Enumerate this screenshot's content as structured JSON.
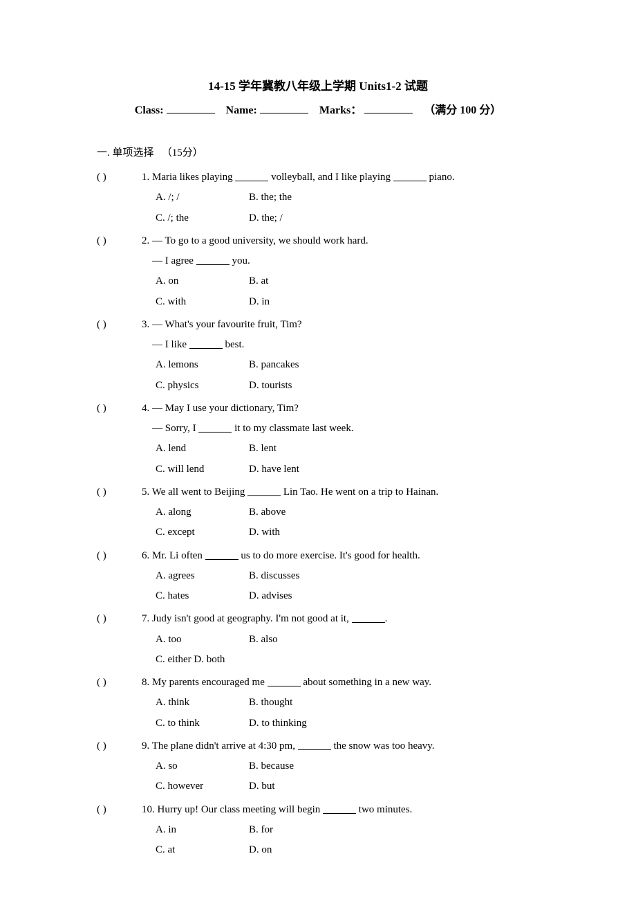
{
  "title": "14-15 学年冀教八年级上学期 Units1-2 试题",
  "header": {
    "class_label": "Class:",
    "name_label": "Name:",
    "marks_label": "Marks：",
    "full_marks": "（满分 100 分）"
  },
  "section": {
    "number": "一.",
    "title": "单项选择",
    "points": "（15分）"
  },
  "questions": [
    {
      "paren": "(       )",
      "num": "1.",
      "text_parts": [
        "Maria likes playing ",
        " volleyball, and I like playing ",
        " piano."
      ],
      "opts": [
        {
          "a": "A. /; /",
          "b": "B. the; the"
        },
        {
          "a": "C. /; the",
          "b": "D. the; /"
        }
      ]
    },
    {
      "paren": "(       )",
      "num": "2.",
      "text_parts": [
        "— To go to a good university, we should work hard."
      ],
      "sub": [
        "— I agree ",
        " you."
      ],
      "opts": [
        {
          "a": "A. on",
          "b": "B. at"
        },
        {
          "a": "C. with",
          "b": "D. in"
        }
      ]
    },
    {
      "paren": "(       )",
      "num": "3.",
      "text_parts": [
        "— What's your favourite fruit, Tim?"
      ],
      "sub": [
        "— I like ",
        " best."
      ],
      "opts": [
        {
          "a": "A. lemons",
          "b": "B. pancakes"
        },
        {
          "a": "C. physics",
          "b": "D. tourists"
        }
      ]
    },
    {
      "paren": "(       )",
      "num": "4.",
      "text_parts": [
        "— May I use your dictionary, Tim?"
      ],
      "sub": [
        "— Sorry, I ",
        " it to my classmate last week."
      ],
      "opts": [
        {
          "a": "A. lend",
          "b": "B. lent"
        },
        {
          "a": "C. will lend",
          "b": "D. have lent"
        }
      ]
    },
    {
      "paren": "(       )",
      "num": "5.",
      "text_parts": [
        "We all went to Beijing ",
        " Lin Tao. He went on a trip to Hainan."
      ],
      "opts": [
        {
          "a": "A. along",
          "b": "B. above"
        },
        {
          "a": "C. except",
          "b": "D. with"
        }
      ]
    },
    {
      "paren": "(       )",
      "num": "6.",
      "text_parts": [
        "Mr. Li often ",
        " us to do more exercise. It's good for health."
      ],
      "opts": [
        {
          "a": "A. agrees",
          "b": "B. discusses"
        },
        {
          "a": "C. hates",
          "b": "D. advises"
        }
      ]
    },
    {
      "paren": "(       )",
      "num": "7.",
      "text_parts": [
        "Judy isn't good at geography. I'm not good at it, ",
        "."
      ],
      "opts": [
        {
          "a": "A. too",
          "b": "B. also"
        }
      ],
      "single_opt": "C. either D. both"
    },
    {
      "paren": "(       )",
      "num": "8.",
      "text_parts": [
        "My parents encouraged me ",
        " about something in a new way."
      ],
      "opts": [
        {
          "a": "A. think",
          "b": "B. thought"
        },
        {
          "a": "C. to think",
          "b": "D. to thinking"
        }
      ]
    },
    {
      "paren": "(       )",
      "num": "9.",
      "text_parts": [
        "The plane didn't arrive at 4:30 pm, ",
        " the snow was too heavy."
      ],
      "opts": [
        {
          "a": "A. so",
          "b": "B. because"
        },
        {
          "a": "C. however",
          "b": "D. but"
        }
      ]
    },
    {
      "paren": "(       )",
      "num_alt": "10.",
      "text_parts": [
        "Hurry up! Our class meeting will begin ",
        " two minutes."
      ],
      "opts": [
        {
          "a": "A. in",
          "b": "B. for"
        },
        {
          "a": "C. at",
          "b": "D. on"
        }
      ]
    }
  ]
}
